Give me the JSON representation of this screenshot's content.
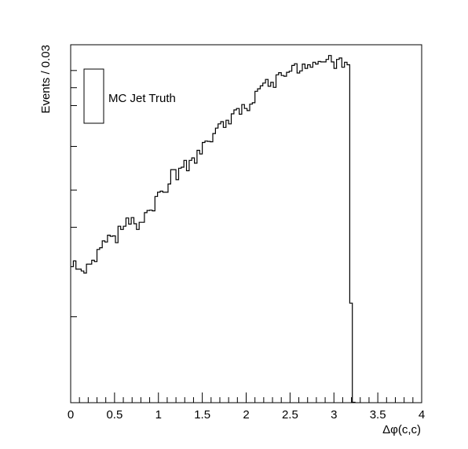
{
  "chart_data": {
    "type": "histogram-step",
    "xlabel": "Δφ(c,c)",
    "ylabel": "Events / 0.03",
    "xlim": [
      0,
      4
    ],
    "ylim": [
      0,
      1
    ],
    "yscale": "log",
    "x_ticks": [
      "0",
      "0.5",
      "1",
      "1.5",
      "2",
      "2.5",
      "3",
      "3.5",
      "4"
    ],
    "bin_width": 0.03,
    "series": [
      {
        "name": "MC Jet Truth",
        "color": "#000000",
        "values": [
          0.38,
          0.396,
          0.373,
          0.373,
          0.368,
          0.362,
          0.387,
          0.387,
          0.398,
          0.394,
          0.428,
          0.433,
          0.452,
          0.449,
          0.468,
          0.465,
          0.466,
          0.447,
          0.493,
          0.484,
          0.493,
          0.516,
          0.499,
          0.517,
          0.5,
          0.484,
          0.504,
          0.504,
          0.531,
          0.537,
          0.538,
          0.536,
          0.576,
          0.588,
          0.591,
          0.588,
          0.588,
          0.611,
          0.651,
          0.651,
          0.623,
          0.655,
          0.658,
          0.677,
          0.648,
          0.677,
          0.684,
          0.669,
          0.705,
          0.695,
          0.727,
          0.731,
          0.73,
          0.729,
          0.752,
          0.767,
          0.779,
          0.785,
          0.769,
          0.789,
          0.779,
          0.807,
          0.818,
          0.822,
          0.806,
          0.833,
          0.822,
          0.816,
          0.834,
          0.838,
          0.87,
          0.877,
          0.885,
          0.893,
          0.903,
          0.884,
          0.895,
          0.881,
          0.916,
          0.922,
          0.914,
          0.912,
          0.923,
          0.926,
          0.942,
          0.947,
          0.921,
          0.927,
          0.946,
          0.934,
          0.944,
          0.937,
          0.951,
          0.946,
          0.953,
          0.952,
          0.952,
          0.959,
          0.97,
          0.952,
          0.934,
          0.959,
          0.963,
          0.937,
          0.951,
          0.944,
          0.278,
          0.001
        ]
      }
    ],
    "legend": {
      "position": "top-left",
      "entries": [
        "MC Jet Truth"
      ]
    },
    "grid": false
  }
}
